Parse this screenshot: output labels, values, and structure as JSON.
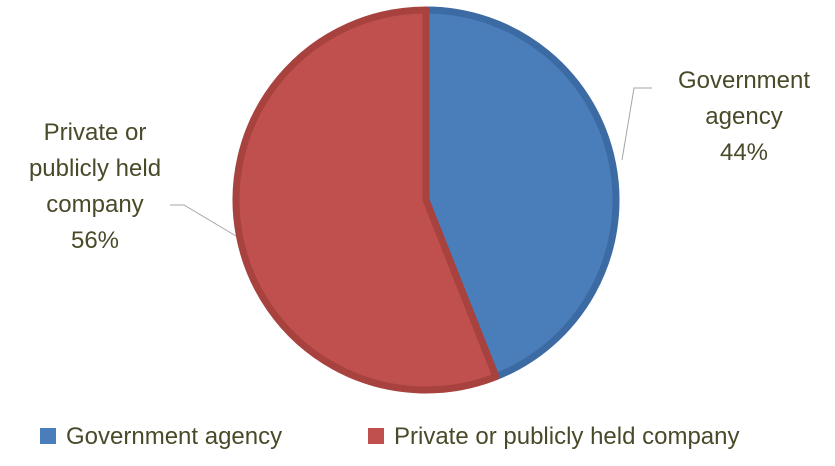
{
  "chart_data": {
    "type": "pie",
    "slices": [
      {
        "name": "Government agency",
        "value": 44,
        "label_lines": [
          "Government",
          "agency",
          "44%"
        ],
        "color": "#4a7ebb",
        "border_color": "#3c6aa3"
      },
      {
        "name": "Private or publicly held company",
        "value": 56,
        "label_lines": [
          "Private or",
          "publicly held",
          "company",
          "56%"
        ],
        "color": "#c0504d",
        "border_color": "#a8423f"
      }
    ],
    "legend": {
      "placement": "bottom",
      "entries": [
        "Government agency",
        "Private or publicly held company"
      ]
    },
    "title": ""
  }
}
